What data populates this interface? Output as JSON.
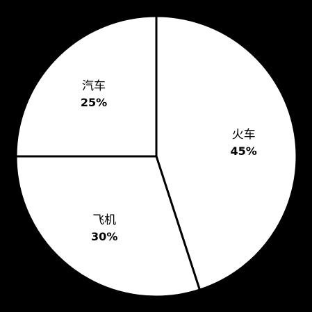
{
  "chart_data": {
    "type": "pie",
    "categories": [
      "火车",
      "飞机",
      "汽车"
    ],
    "values": [
      45,
      30,
      25
    ],
    "value_labels": [
      "45%",
      "30%",
      "25%"
    ],
    "start_angle_deg": 0,
    "direction": "clockwise",
    "legend": "none",
    "colors": {
      "background": "#000000",
      "slice_fill": "#ffffff",
      "slice_edge": "#000000",
      "text": "#000000"
    }
  }
}
